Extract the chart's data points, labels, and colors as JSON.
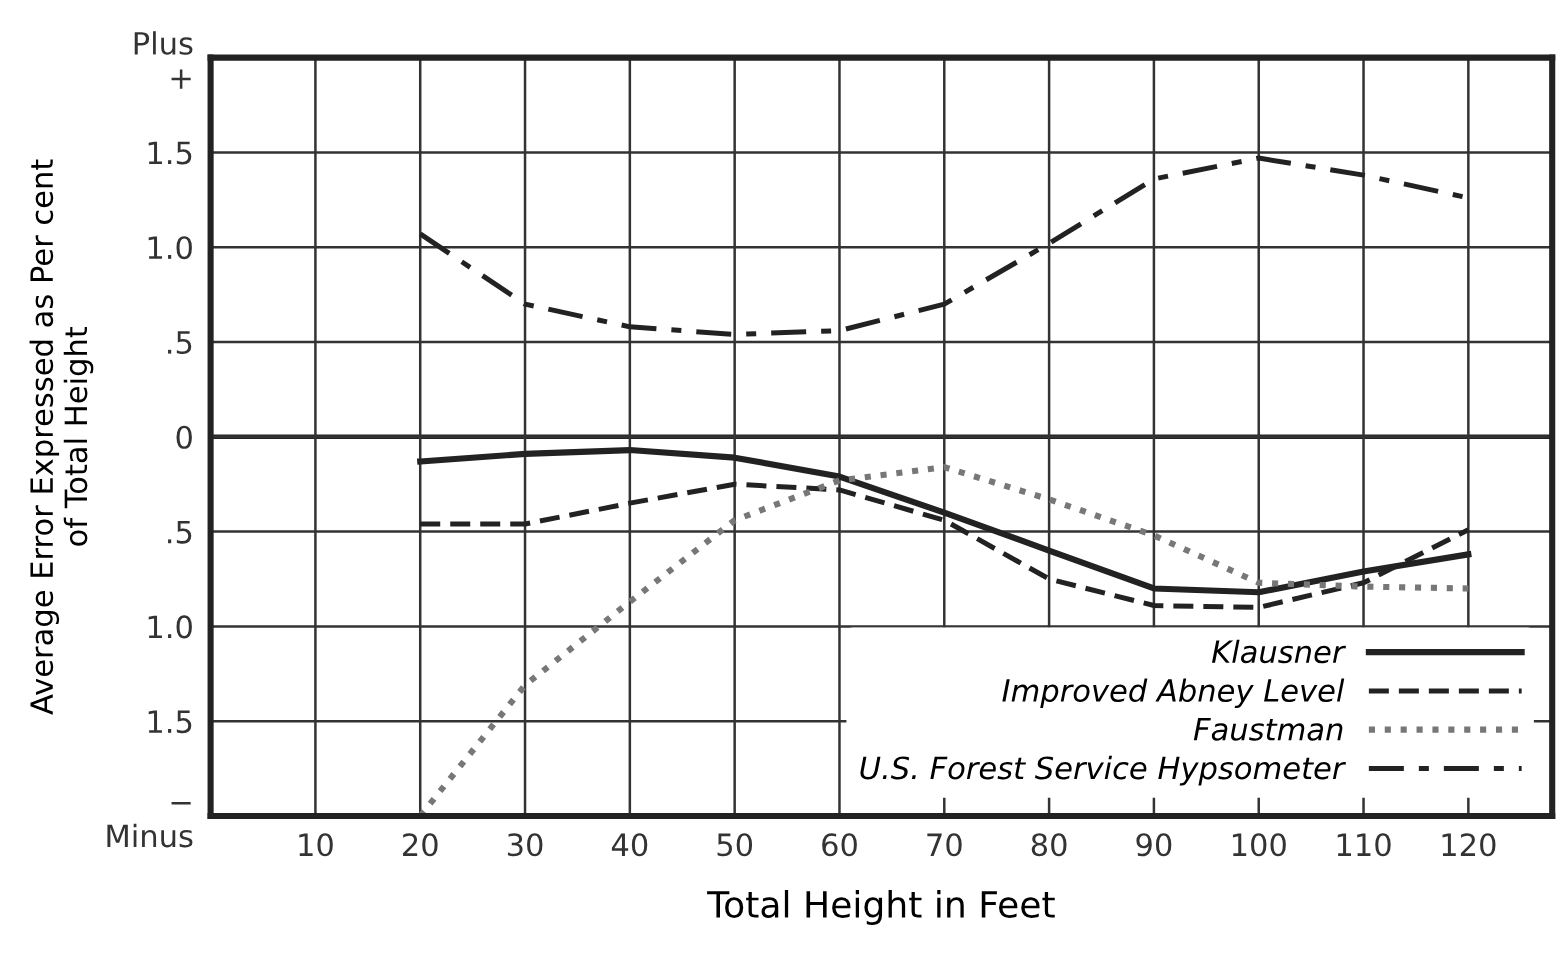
{
  "chart_data": {
    "type": "line",
    "xlabel": "Total Height in Feet",
    "ylabel": "Average Error Expressed as Per cent\nof Total Height",
    "x": [
      20,
      30,
      40,
      50,
      60,
      70,
      80,
      90,
      100,
      110,
      120
    ],
    "series": [
      {
        "name": "Klausner",
        "color": "#222222",
        "line_style": "solid",
        "values": [
          -0.13,
          -0.09,
          -0.07,
          -0.11,
          -0.21,
          -0.4,
          -0.6,
          -0.8,
          -0.82,
          -0.71,
          -0.62
        ]
      },
      {
        "name": "Improved Abney Level",
        "color": "#222222",
        "line_style": "dashed",
        "values": [
          -0.46,
          -0.46,
          -0.35,
          -0.25,
          -0.28,
          -0.44,
          -0.75,
          -0.89,
          -0.9,
          -0.77,
          -0.49
        ]
      },
      {
        "name": "Faustman",
        "color": "#777777",
        "line_style": "dotted",
        "values": [
          -2.0,
          -1.31,
          -0.87,
          -0.44,
          -0.23,
          -0.16,
          -0.33,
          -0.52,
          -0.77,
          -0.79,
          -0.8
        ]
      },
      {
        "name": "U.S. Forest Service Hypsometer",
        "color": "#222222",
        "line_style": "dashdot",
        "values": [
          1.07,
          0.7,
          0.58,
          0.54,
          0.56,
          0.7,
          1.02,
          1.36,
          1.47,
          1.38,
          1.26
        ]
      }
    ],
    "xlim": [
      0,
      128
    ],
    "xticks": [
      10,
      20,
      30,
      40,
      50,
      60,
      70,
      80,
      90,
      100,
      110,
      120
    ],
    "ylim": [
      -2,
      2
    ],
    "yticks": [
      {
        "value": 2,
        "label": "Plus\n+"
      },
      1.5,
      {
        "value": 1,
        "label": "1.0"
      },
      {
        "value": 0.5,
        "label": ".5"
      },
      0,
      {
        "value": -0.5,
        "label": ".5"
      },
      {
        "value": -1,
        "label": "1.0"
      },
      {
        "value": -1.5,
        "label": "1.5"
      },
      {
        "value": -2,
        "label": "−\nMinus"
      }
    ],
    "grid": true,
    "legend": "bottom right",
    "marker": "none"
  }
}
